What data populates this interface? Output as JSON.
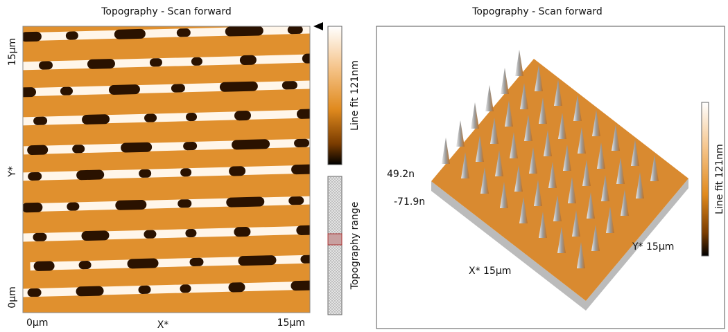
{
  "left_panel": {
    "title": "Topography - Scan forward",
    "y_top_label": "15µm",
    "y_axis_label": "Y*",
    "y_bottom_label": "0µm",
    "x_left_label": "0µm",
    "x_axis_label": "X*",
    "x_right_label": "15µm",
    "colorbar_label": "Line fit 121nm",
    "range_label": "Topography range"
  },
  "right_panel": {
    "title": "Topography - Scan forward",
    "z_top_label": "49.2n",
    "z_bottom_label": "-71.9n",
    "x_axis_label": "X* 15µm",
    "y_axis_label": "Y* 15µm",
    "colorbar_label": "Line fit 121nm"
  }
}
